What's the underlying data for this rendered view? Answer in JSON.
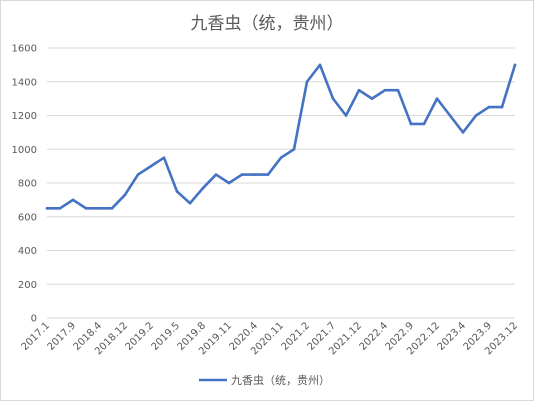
{
  "chart_data": {
    "type": "line",
    "title": "九香虫（统，贵州）",
    "xlabel": "",
    "ylabel": "",
    "ylim": [
      0,
      1600
    ],
    "yticks": [
      0,
      200,
      400,
      600,
      800,
      1000,
      1200,
      1400,
      1600
    ],
    "grid": true,
    "legend": "bottom",
    "line_color": "#4472C4",
    "x_tick_labels": [
      "2017.1",
      "2017.9",
      "2018.4",
      "2018.12",
      "2019.2",
      "2019.5",
      "2019.8",
      "2019.11",
      "2020.4",
      "2020.11",
      "2021.2",
      "2021.7",
      "2021.12",
      "2022.4",
      "2022.9",
      "2022.12",
      "2023.4",
      "2023.9",
      "2023.12"
    ],
    "series": [
      {
        "name": "九香虫（统，贵州）",
        "values": [
          650,
          650,
          700,
          650,
          650,
          650,
          730,
          850,
          900,
          950,
          750,
          680,
          770,
          850,
          800,
          850,
          850,
          850,
          950,
          1000,
          1400,
          1500,
          1300,
          1200,
          1350,
          1300,
          1350,
          1350,
          1150,
          1150,
          1300,
          1200,
          1100,
          1200,
          1250,
          1250,
          1500
        ]
      }
    ]
  }
}
